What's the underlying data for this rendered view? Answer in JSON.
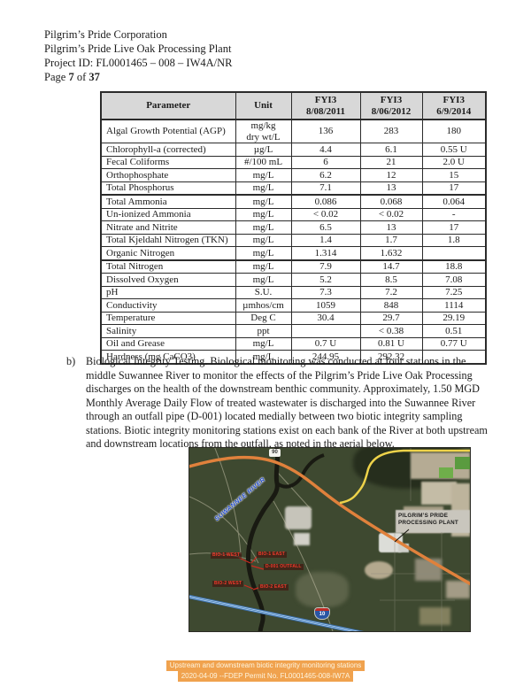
{
  "header": {
    "lines": [
      "Pilgrim’s Pride Corporation",
      "Pilgrim’s Pride Live Oak Processing Plant",
      "Project ID: FL0001465 – 008 – IW4A/NR"
    ],
    "page_label": {
      "prefix": "Page",
      "number": "7",
      "of": "of",
      "total": "37"
    }
  },
  "table": {
    "columns": [
      {
        "title": "Parameter",
        "sub": ""
      },
      {
        "title": "Unit",
        "sub": ""
      },
      {
        "title": "FYI3",
        "sub": "8/08/2011"
      },
      {
        "title": "FYI3",
        "sub": "8/06/2012"
      },
      {
        "title": "FYI3",
        "sub": "6/9/2014"
      }
    ],
    "rows": [
      {
        "parameter": "Algal Growth Potential (AGP)",
        "unit": "mg/kg\ndry wt/L",
        "values": [
          "136",
          "283",
          "180"
        ]
      },
      {
        "parameter": "Chlorophyll-a (corrected)",
        "unit": "µg/L",
        "values": [
          "4.4",
          "6.1",
          "0.55 U"
        ]
      },
      {
        "parameter": "Fecal Coliforms",
        "unit": "#/100 mL",
        "values": [
          "6",
          "21",
          "2.0 U"
        ]
      },
      {
        "parameter": "Orthophosphate",
        "unit": "mg/L",
        "values": [
          "6.2",
          "12",
          "15"
        ]
      },
      {
        "parameter": "Total Phosphorus",
        "unit": "mg/L",
        "values": [
          "7.1",
          "13",
          "17"
        ]
      },
      {
        "parameter": "Total Ammonia",
        "unit": "mg/L",
        "values": [
          "0.086",
          "0.068",
          "0.064"
        ],
        "thick_top": true
      },
      {
        "parameter": "Un-ionized Ammonia",
        "unit": "mg/L",
        "values": [
          "< 0.02",
          "< 0.02",
          "-"
        ]
      },
      {
        "parameter": "Nitrate and Nitrite",
        "unit": "mg/L",
        "values": [
          "6.5",
          "13",
          "17"
        ]
      },
      {
        "parameter": "Total Kjeldahl Nitrogen (TKN)",
        "unit": "mg/L",
        "values": [
          "1.4",
          "1.7",
          "1.8"
        ]
      },
      {
        "parameter": "Organic Nitrogen",
        "unit": "mg/L",
        "values": [
          "1.314",
          "1.632",
          ""
        ]
      },
      {
        "parameter": "Total Nitrogen",
        "unit": "mg/L",
        "values": [
          "7.9",
          "14.7",
          "18.8"
        ],
        "thick_top": true
      },
      {
        "parameter": "Dissolved Oxygen",
        "unit": "mg/L",
        "values": [
          "5.2",
          "8.5",
          "7.08"
        ]
      },
      {
        "parameter": "pH",
        "unit": "S.U.",
        "values": [
          "7.3",
          "7.2",
          "7.25"
        ]
      },
      {
        "parameter": "Conductivity",
        "unit": "µmhos/cm",
        "values": [
          "1059",
          "848",
          "1114"
        ]
      },
      {
        "parameter": "Temperature",
        "unit": "Deg C",
        "values": [
          "30.4",
          "29.7",
          "29.19"
        ]
      },
      {
        "parameter": "Salinity",
        "unit": "ppt",
        "values": [
          "",
          "< 0.38",
          "0.51"
        ]
      },
      {
        "parameter": "Oil and Grease",
        "unit": "mg/L",
        "values": [
          "0.7 U",
          "0.81 U",
          "0.77 U"
        ]
      },
      {
        "parameter": "Hardness (mg CaCO3)",
        "unit": "mg/L",
        "values": [
          "244.95",
          "292.32",
          ""
        ]
      }
    ]
  },
  "section_b": {
    "marker": "b)",
    "text": "Biological Integrity Testing.  Biological monitoring was conducted at four stations in the middle Suwannee River to monitor the effects of the Pilgrim’s Pride Live Oak Processing discharges on the health of the downstream benthic community. Approximately, 1.50 MGD Monthly Average Daily Flow of treated wastewater is discharged into the Suwannee River through an outfall pipe (D-001) located medially between two biotic integrity sampling stations. Biotic integrity monitoring stations exist on each bank of the River at both upstream and downstream locations from the outfall, as noted in the aerial below."
  },
  "map": {
    "river_label": "SUWANNEE RIVER",
    "plant_label": [
      "PILGRIM’S PRIDE",
      "PROCESSING PLANT"
    ],
    "route_shield": "90",
    "interstate_shield": "10",
    "stations": [
      {
        "label": "BIO-1 WEST"
      },
      {
        "label": "BIO-1 EAST"
      },
      {
        "label": "D-001 OUTFALL"
      },
      {
        "label": "BIO-2 WEST"
      },
      {
        "label": "BIO-2 EAST"
      }
    ],
    "colors": {
      "terrain": "#3e4930",
      "highway_orange": "#e0813c",
      "road_yellow": "#eed34a",
      "river_black": "#191a12",
      "interstate_blue": "#9cc4e8",
      "station_red": "#ef3a2b"
    }
  },
  "caption": {
    "line1": "Upstream and downstream biotic integrity monitoring stations",
    "line2": "2020-04-09 --FDEP Permit No. FL0001465-008-IW7A",
    "highlight_color": "#f0a24e"
  }
}
